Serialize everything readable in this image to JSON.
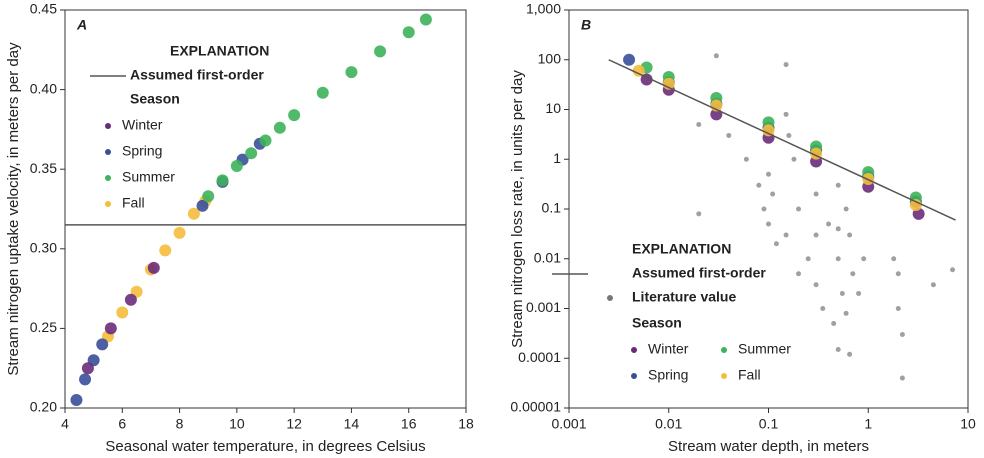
{
  "chart_data": [
    {
      "type": "scatter",
      "panel_label": "A",
      "x_label": "Seasonal water temperature, in degrees Celsius",
      "y_label": "Stream nitrogen uptake velocity, in meters per day",
      "legend_title": "EXPLANATION",
      "legend_subtitle": "Season",
      "xlim": [
        4,
        18
      ],
      "xticks": [
        4,
        6,
        8,
        10,
        12,
        14,
        16,
        18
      ],
      "ylim": [
        0.2,
        0.45
      ],
      "yticks": [
        {
          "value": 0.2,
          "label": "0.20"
        },
        0.25,
        {
          "value": 0.3,
          "label": "0.30"
        },
        0.35,
        {
          "value": 0.4,
          "label": "0.40"
        },
        0.45
      ],
      "reference_line": {
        "name": "Assumed first-order",
        "color": "#555555",
        "y": 0.315
      },
      "series": [
        {
          "name": "Winter",
          "color": "#6a2c7a",
          "x": [
            4.8,
            5.6,
            6.3,
            7.1
          ],
          "y": [
            0.225,
            0.25,
            0.268,
            0.288
          ]
        },
        {
          "name": "Spring",
          "color": "#3a4f9a",
          "x": [
            4.4,
            4.7,
            5.0,
            5.3,
            8.8,
            9.5,
            10.2,
            10.8
          ],
          "y": [
            0.205,
            0.218,
            0.23,
            0.24,
            0.327,
            0.342,
            0.356,
            0.366
          ]
        },
        {
          "name": "Summer",
          "color": "#3db35a",
          "x": [
            9,
            9.5,
            10,
            10.5,
            11,
            11.5,
            12,
            13,
            14,
            15,
            16,
            16.6
          ],
          "y": [
            0.333,
            0.343,
            0.352,
            0.36,
            0.368,
            0.376,
            0.384,
            0.398,
            0.411,
            0.424,
            0.436,
            0.444
          ]
        },
        {
          "name": "Fall",
          "color": "#f5bd3c",
          "x": [
            5.5,
            6,
            6.5,
            7,
            7.5,
            8,
            8.5,
            8.9
          ],
          "y": [
            0.245,
            0.26,
            0.273,
            0.287,
            0.299,
            0.31,
            0.322,
            0.33
          ]
        }
      ]
    },
    {
      "type": "scatter",
      "panel_label": "B",
      "log_x": true,
      "log_y": true,
      "x_label": "Stream water depth, in meters",
      "y_label": "Stream nitrogen loss rate, in units per day",
      "legend_title": "EXPLANATION",
      "legend_subtitle": "Season",
      "xlim": [
        0.001,
        10
      ],
      "xticks": [
        0.001,
        0.01,
        0.1,
        1,
        10
      ],
      "ylim": [
        1e-05,
        1000
      ],
      "yticks": [
        1e-05,
        0.0001,
        0.001,
        0.01,
        0.1,
        1,
        10,
        100,
        {
          "value": 1000,
          "label": "1,000"
        }
      ],
      "reference_line": {
        "name": "Assumed first-order",
        "color": "#555555",
        "x": [
          0.0025,
          7.5
        ],
        "y": [
          100,
          0.06
        ]
      },
      "series": [
        {
          "name": "Winter",
          "color": "#6a2c7a",
          "x": [
            0.006,
            0.01,
            0.03,
            0.1,
            0.3,
            1,
            3.2
          ],
          "y": [
            40,
            25,
            8,
            2.7,
            0.9,
            0.28,
            0.08
          ]
        },
        {
          "name": "Spring",
          "color": "#3a4f9a",
          "x": [
            0.004,
            0.01,
            0.03,
            0.1,
            0.3,
            1,
            3
          ],
          "y": [
            100,
            35,
            13,
            4.3,
            1.5,
            0.45,
            0.14
          ]
        },
        {
          "name": "Summer",
          "color": "#3db35a",
          "x": [
            0.006,
            0.01,
            0.03,
            0.1,
            0.3,
            1,
            3
          ],
          "y": [
            70,
            45,
            17,
            5.5,
            1.8,
            0.55,
            0.17
          ]
        },
        {
          "name": "Fall",
          "color": "#f5bd3c",
          "x": [
            0.005,
            0.01,
            0.03,
            0.1,
            0.3,
            1,
            3
          ],
          "y": [
            60,
            33,
            12,
            3.8,
            1.3,
            0.4,
            0.12
          ]
        },
        {
          "name": "Literature value",
          "color": "#777777",
          "x": [
            0.03,
            0.15,
            0.02,
            0.04,
            0.06,
            0.08,
            0.09,
            0.1,
            0.1,
            0.11,
            0.12,
            0.15,
            0.18,
            0.2,
            0.2,
            0.25,
            0.3,
            0.3,
            0.35,
            0.4,
            0.45,
            0.5,
            0.5,
            0.55,
            0.6,
            0.6,
            0.65,
            0.7,
            0.8,
            0.9,
            1.8,
            2,
            2,
            2.2,
            2.2,
            0.5,
            0.65,
            0.02,
            0.15,
            0.16,
            0.3,
            0.5,
            7,
            4.5
          ],
          "y": [
            120,
            80,
            5,
            3,
            1,
            0.3,
            0.1,
            0.5,
            0.05,
            0.2,
            0.02,
            0.03,
            1,
            0.1,
            0.005,
            0.01,
            0.03,
            0.003,
            0.001,
            0.05,
            0.0005,
            0.04,
            0.01,
            0.002,
            0.1,
            0.0008,
            0.03,
            0.005,
            0.002,
            0.01,
            0.01,
            0.005,
            0.001,
            0.0003,
            4e-05,
            0.00015,
            0.00012,
            0.08,
            8,
            3,
            0.2,
            0.3,
            0.006,
            0.003
          ]
        }
      ]
    }
  ]
}
